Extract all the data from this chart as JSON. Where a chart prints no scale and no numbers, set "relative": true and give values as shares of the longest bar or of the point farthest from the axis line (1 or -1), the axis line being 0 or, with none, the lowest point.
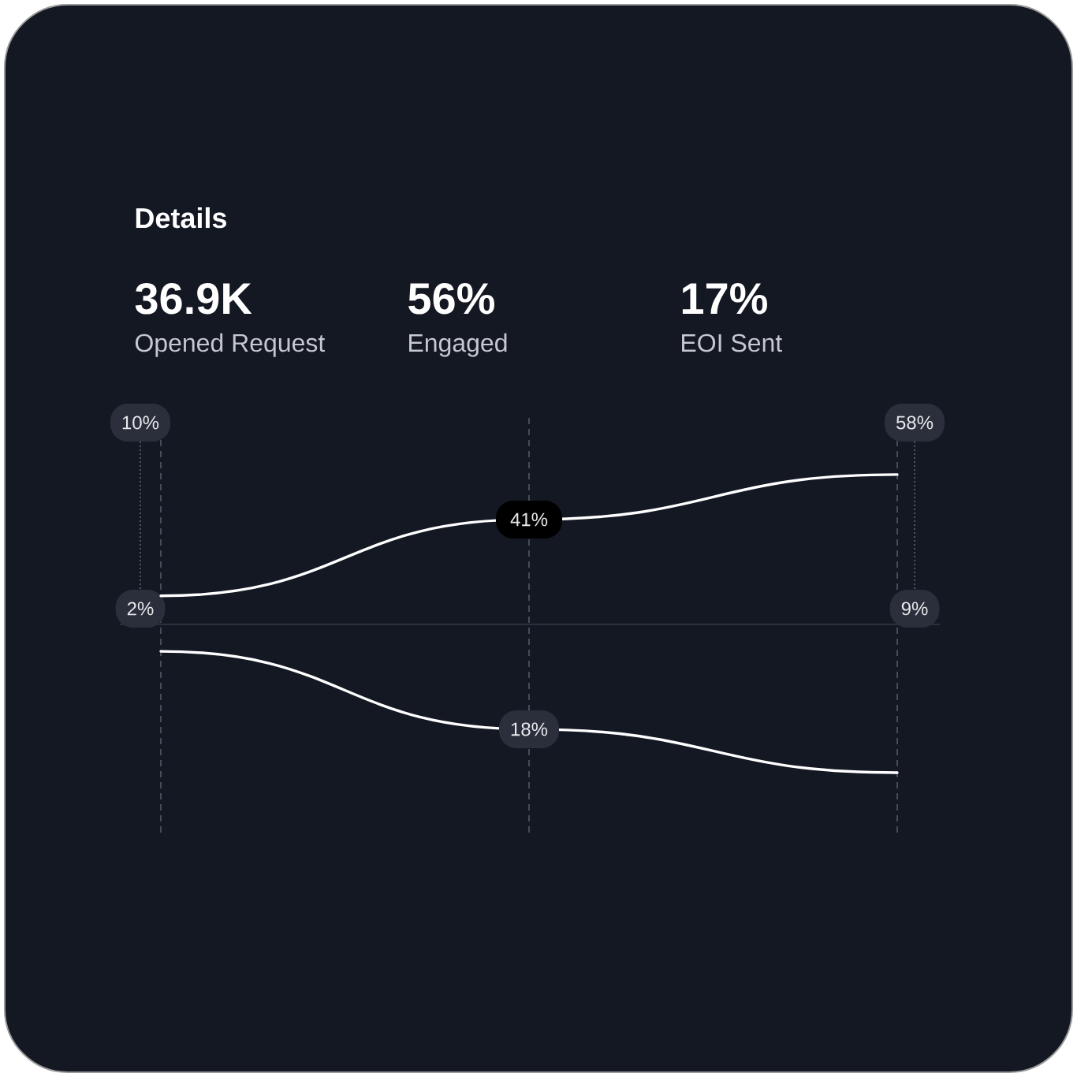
{
  "chart_data": [
    {
      "type": "other",
      "title": "Details",
      "annotations": [
        "36.9K",
        "Opened Request",
        "56%",
        "Engaged",
        "17%",
        "EOI Sent"
      ]
    },
    {
      "type": "line",
      "relative": true,
      "categories": [
        null,
        null,
        null
      ],
      "grid": "x",
      "series": [
        {
          "color": "#ffffff",
          "values": [
            0.19,
            0.7,
            1
          ]
        },
        {
          "color": "#ffffff",
          "values": [
            -0.18,
            -0.7,
            -0.99
          ]
        }
      ],
      "annotations": [
        "10%",
        "2%",
        {
          "text": "41%",
          "y": 0.7
        },
        {
          "text": "18%",
          "y": -0.7
        },
        "58%",
        "9%"
      ]
    }
  ]
}
